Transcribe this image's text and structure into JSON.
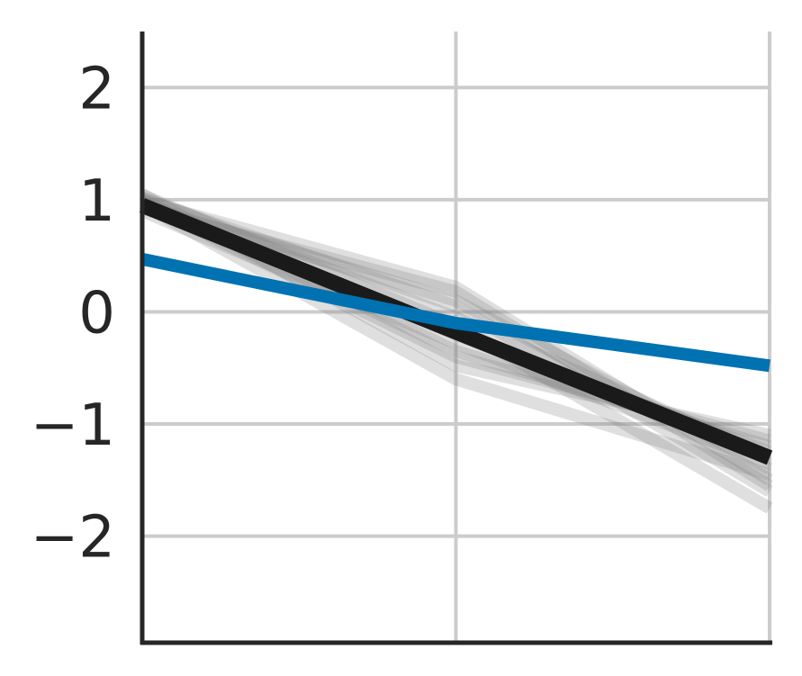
{
  "chart_data": {
    "type": "line",
    "title": "",
    "xlabel": "",
    "ylabel": "",
    "x": [
      0,
      1,
      2
    ],
    "xlim": [
      0,
      2
    ],
    "ylim": [
      -2.95,
      2.5
    ],
    "yticks": [
      2,
      1,
      0,
      -1,
      -2
    ],
    "ytick_labels": [
      "2",
      "1",
      "0",
      "−1",
      "−2"
    ],
    "grid": true,
    "legend": "none",
    "series": [
      {
        "role": "samples",
        "color": "#808080",
        "lines": [
          [
            1.02,
            -0.05,
            -1.3
          ],
          [
            0.98,
            -0.2,
            -1.25
          ],
          [
            0.95,
            0.1,
            -1.4
          ],
          [
            1.0,
            -0.35,
            -1.2
          ],
          [
            0.92,
            0.18,
            -1.55
          ],
          [
            1.05,
            -0.48,
            -1.1
          ],
          [
            0.96,
            -0.6,
            -1.45
          ],
          [
            1.01,
            0.05,
            -1.6
          ],
          [
            0.9,
            -0.28,
            -1.35
          ],
          [
            1.04,
            -0.12,
            -1.75
          ],
          [
            0.97,
            -0.4,
            -1.15
          ],
          [
            0.99,
            0.22,
            -1.5
          ]
        ]
      },
      {
        "role": "mean",
        "color": "#1a1a1a",
        "values": [
          0.95,
          -0.18,
          -1.3
        ]
      },
      {
        "role": "reference",
        "color": "#0072b2",
        "values": [
          0.47,
          -0.1,
          -0.48
        ]
      }
    ]
  }
}
